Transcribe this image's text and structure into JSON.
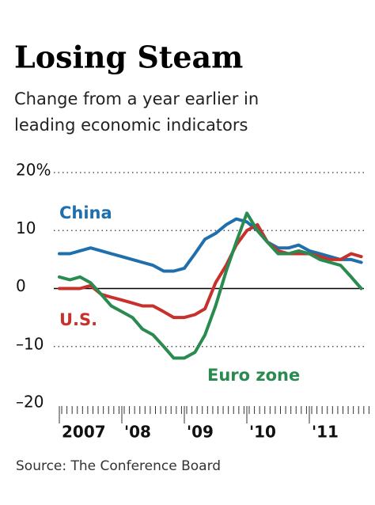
{
  "chart_data": {
    "type": "line",
    "title": "Losing Steam",
    "subtitle": [
      "Change from a year earlier in",
      "leading economic indicators"
    ],
    "source": "Source: The Conference Board",
    "x": [
      2007,
      2007.17,
      2007.33,
      2007.5,
      2007.67,
      2007.83,
      2008,
      2008.17,
      2008.33,
      2008.5,
      2008.67,
      2008.83,
      2009,
      2009.17,
      2009.33,
      2009.5,
      2009.67,
      2009.83,
      2010,
      2010.17,
      2010.33,
      2010.5,
      2010.67,
      2010.83,
      2011,
      2011.17,
      2011.33,
      2011.5,
      2011.67,
      2011.83
    ],
    "series": [
      {
        "name": "China",
        "color": "#1f6fad",
        "values": [
          6,
          6,
          6.5,
          7,
          6.5,
          6,
          5.5,
          5,
          4.5,
          4,
          3,
          3,
          3.5,
          6,
          8.5,
          9.5,
          11,
          12,
          11.5,
          10,
          8,
          7,
          7,
          7.5,
          6.5,
          6,
          5.5,
          5,
          5,
          4.5
        ]
      },
      {
        "name": "U.S.",
        "color": "#c8302c",
        "values": [
          0,
          0,
          0,
          0.5,
          -1,
          -1.5,
          -2,
          -2.5,
          -3,
          -3,
          -4,
          -5,
          -5,
          -4.5,
          -3.5,
          1,
          4,
          7.5,
          10,
          11,
          8,
          6.5,
          6,
          6,
          6,
          5.5,
          5,
          5,
          6,
          5.5
        ]
      },
      {
        "name": "Euro zone",
        "color": "#2a8a4f",
        "values": [
          2,
          1.5,
          2,
          1,
          -1,
          -3,
          -4,
          -5,
          -7,
          -8,
          -10,
          -12,
          -12,
          -11,
          -8,
          -3,
          3,
          8,
          13,
          10,
          8,
          6,
          6,
          6.5,
          6,
          5,
          4.5,
          4,
          2,
          0
        ]
      }
    ],
    "xlim": [
      2007,
      2012
    ],
    "xticks": [
      {
        "value": 2007,
        "label": "2007"
      },
      {
        "value": 2008,
        "label": "'08"
      },
      {
        "value": 2009,
        "label": "'09"
      },
      {
        "value": 2010,
        "label": "'10"
      },
      {
        "value": 2011,
        "label": "'11"
      }
    ],
    "minor_ticks_per_year": 12,
    "ylim": [
      -20,
      20
    ],
    "yticks": [
      {
        "value": -20,
        "label": "–20"
      },
      {
        "value": -10,
        "label": "–10"
      },
      0,
      10,
      {
        "value": 20,
        "label": "20%"
      }
    ],
    "grid": true
  }
}
